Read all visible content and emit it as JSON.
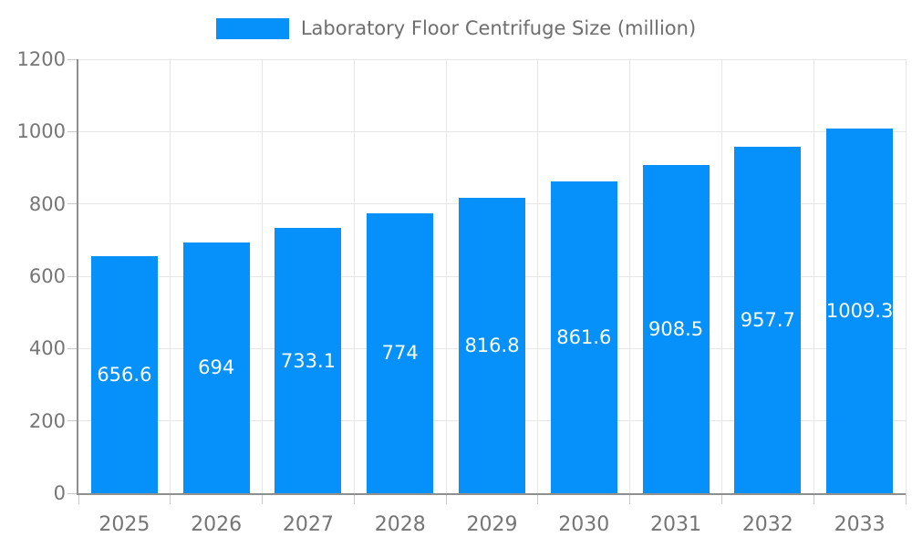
{
  "legend": {
    "label": "Laboratory Floor Centrifuge Size (million)"
  },
  "chart_data": {
    "type": "bar",
    "title": "Laboratory Floor Centrifuge Size (million)",
    "categories": [
      "2025",
      "2026",
      "2027",
      "2028",
      "2029",
      "2030",
      "2031",
      "2032",
      "2033"
    ],
    "values": [
      656.6,
      694,
      733.1,
      774,
      816.8,
      861.6,
      908.5,
      957.7,
      1009.3
    ],
    "value_labels": [
      "656.6",
      "694",
      "733.1",
      "774",
      "816.8",
      "861.6",
      "908.5",
      "957.7",
      "1009.3"
    ],
    "xlabel": "",
    "ylabel": "",
    "ylim": [
      0,
      1200
    ],
    "yticks": [
      0,
      200,
      400,
      600,
      800,
      1000,
      1200
    ],
    "grid": true,
    "legend_position": "top-center",
    "colors": {
      "bar": "#0590fa",
      "value_label": "#ffffff",
      "axis_line": "#8f8f8f",
      "grid_line": "#e6e6e6",
      "tick_line": "#c9c9c9",
      "axis_text": "#757575",
      "legend_text": "#6e6e6e",
      "background": "#ffffff"
    }
  }
}
